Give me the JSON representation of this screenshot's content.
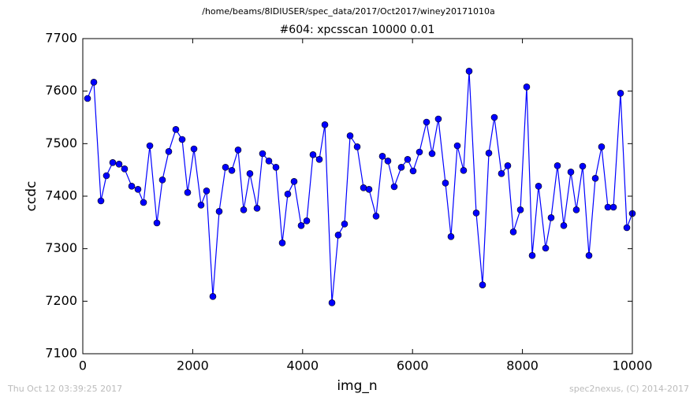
{
  "chart_data": {
    "type": "line",
    "suptitle": "/home/beams/8IDIUSER/spec_data/2017/Oct2017/winey20171010a",
    "title": "#604: xpcsscan 10000 0.01",
    "xlabel": "img_n",
    "ylabel": "ccdc",
    "footer_left": "Thu Oct 12 03:39:25 2017",
    "footer_right": "spec2nexus, (C) 2014-2017",
    "color": "#0000ff",
    "xlim": [
      0,
      10000
    ],
    "xticks": [
      0,
      2000,
      4000,
      6000,
      8000,
      10000
    ],
    "ylim": [
      7100,
      7700
    ],
    "yticks": [
      7100,
      7200,
      7300,
      7400,
      7500,
      7600,
      7700
    ],
    "x": [
      86,
      201,
      330,
      430,
      545,
      660,
      760,
      890,
      1004,
      1105,
      1220,
      1349,
      1449,
      1564,
      1693,
      1808,
      1908,
      2023,
      2152,
      2252,
      2367,
      2482,
      2597,
      2712,
      2826,
      2927,
      3041,
      3171,
      3271,
      3386,
      3515,
      3630,
      3730,
      3845,
      3974,
      4075,
      4189,
      4304,
      4405,
      4534,
      4648,
      4763,
      4864,
      4993,
      5108,
      5208,
      5337,
      5452,
      5552,
      5667,
      5796,
      5911,
      6011,
      6126,
      6255,
      6356,
      6470,
      6599,
      6700,
      6815,
      6929,
      7030,
      7159,
      7274,
      7389,
      7489,
      7618,
      7733,
      7834,
      7963,
      8077,
      8178,
      8293,
      8422,
      8522,
      8637,
      8752,
      8881,
      8981,
      9096,
      9211,
      9326,
      9440,
      9555,
      9656,
      9785,
      9900,
      10000
    ],
    "values": [
      7586,
      7617,
      7391,
      7439,
      7464,
      7461,
      7452,
      7419,
      7413,
      7388,
      7496,
      7349,
      7431,
      7485,
      7527,
      7508,
      7407,
      7490,
      7383,
      7410,
      7209,
      7371,
      7455,
      7449,
      7488,
      7374,
      7443,
      7377,
      7481,
      7467,
      7455,
      7311,
      7404,
      7428,
      7344,
      7353,
      7479,
      7470,
      7536,
      7197,
      7326,
      7347,
      7515,
      7494,
      7416,
      7413,
      7362,
      7476,
      7467,
      7418,
      7455,
      7470,
      7448,
      7484,
      7541,
      7481,
      7547,
      7425,
      7323,
      7496,
      7449,
      7638,
      7368,
      7231,
      7482,
      7550,
      7443,
      7458,
      7332,
      7374,
      7608,
      7287,
      7419,
      7301,
      7359,
      7458,
      7344,
      7446,
      7374,
      7457,
      7287,
      7434,
      7494,
      7379,
      7379,
      7596,
      7340,
      7367
    ]
  }
}
